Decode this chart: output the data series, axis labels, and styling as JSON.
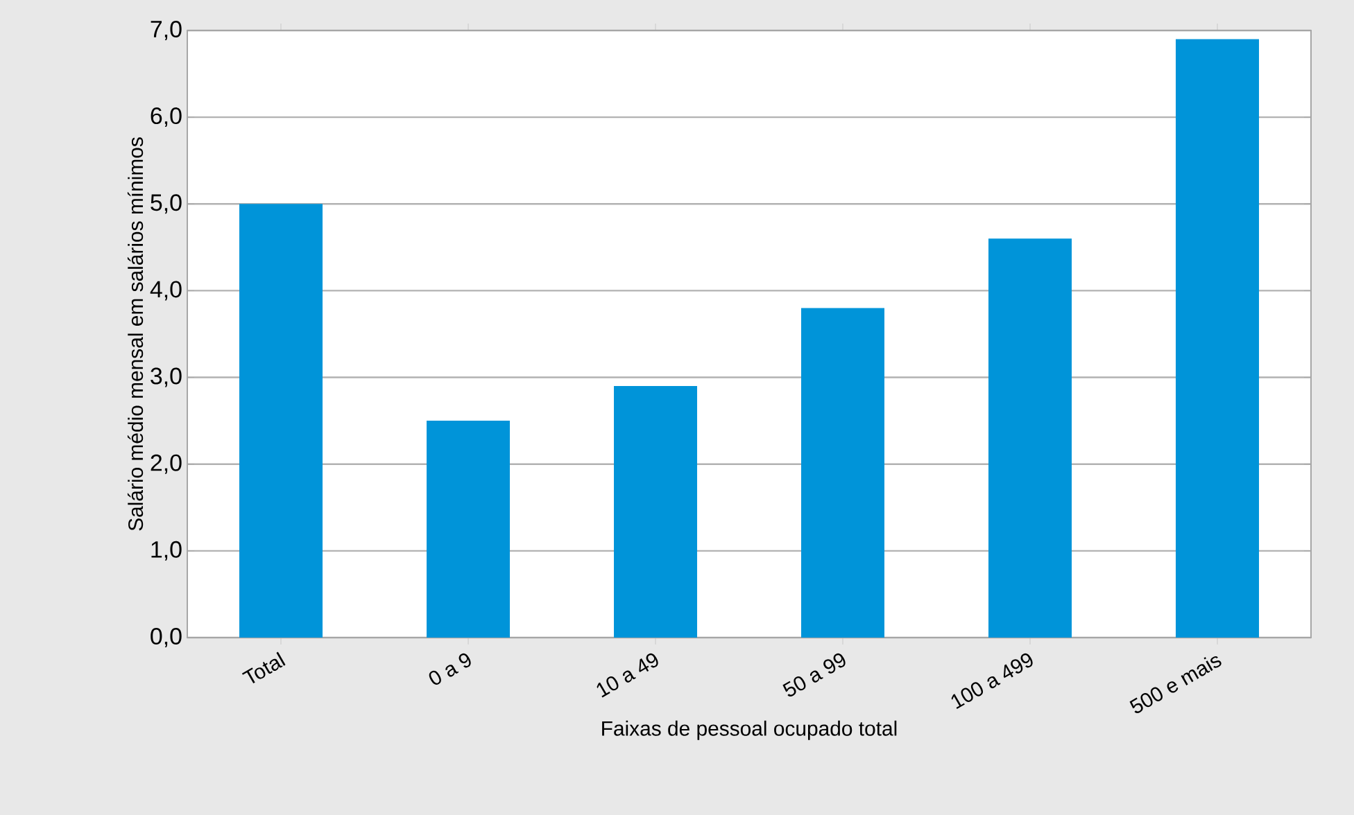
{
  "chart_data": {
    "type": "bar",
    "xlabel": "Faixas de pessoal ocupado total",
    "ylabel": "Salário médio mensal em salários mínimos",
    "categories": [
      "Total",
      "0 a 9",
      "10 a 49",
      "50 a 99",
      "100 a 499",
      "500 e mais"
    ],
    "values": [
      5.0,
      2.5,
      2.9,
      3.8,
      4.6,
      6.9
    ],
    "color": "#0094d9",
    "ylim": [
      0,
      7
    ],
    "yticks": [
      {
        "value": 0,
        "label": "0,0"
      },
      {
        "value": 1,
        "label": "1,0"
      },
      {
        "value": 2,
        "label": "2,0"
      },
      {
        "value": 3,
        "label": "3,0"
      },
      {
        "value": 4,
        "label": "4,0"
      },
      {
        "value": 5,
        "label": "5,0"
      },
      {
        "value": 6,
        "label": "6,0"
      },
      {
        "value": 7,
        "label": "7,0"
      }
    ],
    "grid": "y"
  }
}
